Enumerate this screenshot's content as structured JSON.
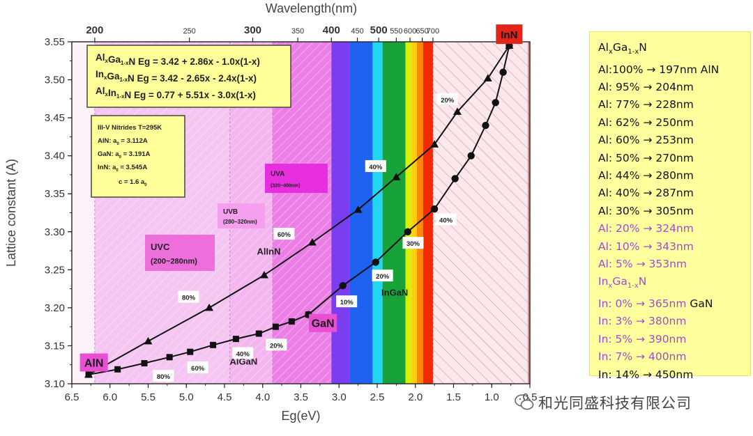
{
  "chart_data": {
    "type": "line",
    "xlabel": "Eg(eV)",
    "ylabel": "Lattice constant (A)",
    "top_axis_label": "Wavelength(nm)",
    "xlim": [
      6.5,
      0.5
    ],
    "ylim": [
      3.1,
      3.55
    ],
    "x_ticks": [
      "6.5",
      "6.0",
      "5.5",
      "5.0",
      "4.5",
      "4.0",
      "3.5",
      "3.0",
      "2.5",
      "2.0",
      "1.5",
      "1.0",
      "0.5"
    ],
    "x_tick_values": [
      6.5,
      6.0,
      5.5,
      5.0,
      4.5,
      4.0,
      3.5,
      3.0,
      2.5,
      2.0,
      1.5,
      1.0,
      0.5
    ],
    "y_ticks": [
      "3.10",
      "3.15",
      "3.20",
      "3.25",
      "3.30",
      "3.35",
      "3.40",
      "3.45",
      "3.50",
      "3.55"
    ],
    "y_tick_values": [
      3.1,
      3.15,
      3.2,
      3.25,
      3.3,
      3.35,
      3.4,
      3.45,
      3.5,
      3.55
    ],
    "top_ticks": [
      {
        "label": "200",
        "eV": 6.2,
        "bold": true
      },
      {
        "label": "250",
        "eV": 4.96,
        "bold": false
      },
      {
        "label": "300",
        "eV": 4.13,
        "bold": true
      },
      {
        "label": "350",
        "eV": 3.54,
        "bold": false
      },
      {
        "label": "400",
        "eV": 3.1,
        "bold": true
      },
      {
        "label": "450",
        "eV": 2.76,
        "bold": false
      },
      {
        "label": "500",
        "eV": 2.48,
        "bold": true
      },
      {
        "label": "550",
        "eV": 2.25,
        "bold": false
      },
      {
        "label": "600",
        "eV": 2.07,
        "bold": false
      },
      {
        "label": "650",
        "eV": 1.91,
        "bold": false
      },
      {
        "label": "700",
        "eV": 1.77,
        "bold": false
      }
    ],
    "series": [
      {
        "name": "AlGaN",
        "marker": "square",
        "x": [
          6.28,
          5.9,
          5.55,
          5.22,
          4.95,
          4.65,
          4.35,
          4.05,
          3.83,
          3.62,
          3.4
        ],
        "y": [
          3.112,
          3.119,
          3.127,
          3.135,
          3.142,
          3.151,
          3.159,
          3.166,
          3.175,
          3.182,
          3.191
        ]
      },
      {
        "name": "InGaN",
        "marker": "circle",
        "x": [
          3.4,
          2.95,
          2.52,
          2.1,
          1.75,
          1.48,
          1.27,
          1.08,
          0.95,
          0.85,
          0.77
        ],
        "y": [
          3.191,
          3.229,
          3.26,
          3.3,
          3.33,
          3.37,
          3.4,
          3.44,
          3.47,
          3.51,
          3.545
        ]
      },
      {
        "name": "AlInN",
        "marker": "triangle",
        "x": [
          6.28,
          5.5,
          4.7,
          3.98,
          3.35,
          2.75,
          2.25,
          1.75,
          1.45,
          1.05,
          0.77
        ],
        "y": [
          3.112,
          3.156,
          3.2,
          3.243,
          3.286,
          3.329,
          3.372,
          3.415,
          3.458,
          3.502,
          3.545
        ]
      }
    ],
    "regions": [
      {
        "label": "UVC",
        "sub": "(200~280nm)",
        "from": 6.2,
        "to": 4.43,
        "color": "#f4c6f1"
      },
      {
        "label": "UVB",
        "sub": "(280~320nm)",
        "from": 4.43,
        "to": 3.87,
        "color": "#f3b6ef"
      },
      {
        "label": "UVA",
        "sub": "(320~400nm)",
        "from": 3.87,
        "to": 3.1,
        "color": "#ec7fe6"
      }
    ],
    "spectrum": [
      {
        "from": 3.1,
        "to": 2.86,
        "color": "#7a3df0"
      },
      {
        "from": 2.86,
        "to": 2.56,
        "color": "#1e62ef"
      },
      {
        "from": 2.56,
        "to": 2.43,
        "color": "#22d6f2"
      },
      {
        "from": 2.43,
        "to": 2.13,
        "color": "#17a33a"
      },
      {
        "from": 2.13,
        "to": 2.05,
        "color": "#d7f007"
      },
      {
        "from": 2.05,
        "to": 1.98,
        "color": "#ffcf07"
      },
      {
        "from": 1.98,
        "to": 1.9,
        "color": "#ff8a00"
      },
      {
        "from": 1.9,
        "to": 1.77,
        "color": "#f22a00"
      }
    ],
    "equations": [
      {
        "a": "Al",
        "sub1": "x",
        "b": "Ga",
        "sub2": "1-x",
        "c": "N",
        "eq": "Eg = 3.42 + 2.86x - 1.0x(1-x)"
      },
      {
        "a": "In",
        "sub1": "x",
        "b": "Ga",
        "sub2": "1-x",
        "c": "N",
        "eq": "Eg = 3.42 -  2.65x - 2.4x(1-x)"
      },
      {
        "a": "Al",
        "sub1": "x",
        "b": "In",
        "sub2": "1-x",
        "c": "N",
        "eq": "Eg = 0.77 + 5.51x - 3.0x(1-x)"
      }
    ],
    "params": {
      "title": "III-V Nitrides T=295K",
      "aln": "AlN:  a",
      "aln_val": " = 3.112A",
      "gan": "GaN:  a",
      "gan_val": " = 3.191A",
      "inn": "InN:  a",
      "inn_val": " = 3.545A",
      "c": "c = 1.6 a"
    },
    "annotations": [
      {
        "text": "AlN",
        "x": 6.22,
        "y": 3.128,
        "kind": "pinkbox"
      },
      {
        "text": "GaN",
        "x": 3.22,
        "y": 3.18,
        "kind": "pinkbox"
      },
      {
        "text": "InN",
        "x": 0.78,
        "y": 3.56,
        "kind": "redbox"
      },
      {
        "text": "AlGaN",
        "x": 4.25,
        "y": 3.125,
        "kind": "label"
      },
      {
        "text": "AlInN",
        "x": 3.92,
        "y": 3.27,
        "kind": "label"
      },
      {
        "text": "InGaN",
        "x": 2.27,
        "y": 3.216,
        "kind": "label"
      },
      {
        "text": "80%",
        "x": 5.3,
        "y": 3.11,
        "kind": "pct"
      },
      {
        "text": "60%",
        "x": 4.85,
        "y": 3.121,
        "kind": "pct"
      },
      {
        "text": "40%",
        "x": 4.26,
        "y": 3.14,
        "kind": "pct"
      },
      {
        "text": "20%",
        "x": 3.82,
        "y": 3.151,
        "kind": "pct"
      },
      {
        "text": "80%",
        "x": 4.97,
        "y": 3.214,
        "kind": "pct"
      },
      {
        "text": "60%",
        "x": 3.72,
        "y": 3.297,
        "kind": "pct"
      },
      {
        "text": "40%",
        "x": 2.52,
        "y": 3.386,
        "kind": "pct"
      },
      {
        "text": "20%",
        "x": 1.58,
        "y": 3.474,
        "kind": "pct"
      },
      {
        "text": "10%",
        "x": 2.9,
        "y": 3.208,
        "kind": "pct"
      },
      {
        "text": "20%",
        "x": 2.43,
        "y": 3.242,
        "kind": "pct"
      },
      {
        "text": "30%",
        "x": 2.03,
        "y": 3.285,
        "kind": "pct"
      },
      {
        "text": "40%",
        "x": 1.6,
        "y": 3.316,
        "kind": "pct"
      }
    ]
  },
  "panel": {
    "algan_head": {
      "a": "Al",
      "s1": "x",
      "b": "Ga",
      "s2": "1-x",
      "c": "N"
    },
    "algan_rows": [
      {
        "text": "Al:100% → 197nm AlN",
        "color": "black"
      },
      {
        "text": "Al:  95% → 204nm",
        "color": "black"
      },
      {
        "text": "Al:  77% → 228nm",
        "color": "black"
      },
      {
        "text": "Al:  62% → 250nm",
        "color": "black"
      },
      {
        "text": "Al:  60% → 253nm",
        "color": "black"
      },
      {
        "text": "Al:  50% → 270nm",
        "color": "black"
      },
      {
        "text": "Al:  44% → 280nm",
        "color": "black"
      },
      {
        "text": "Al:  40% → 287nm",
        "color": "black"
      },
      {
        "text": "Al:  30% → 305nm",
        "color": "black"
      },
      {
        "text": "Al:  20% → 324nm",
        "color": "purple"
      },
      {
        "text": "Al:  10% → 343nm",
        "color": "purple"
      },
      {
        "text": "Al:    5% → 353nm",
        "color": "purple"
      }
    ],
    "ingan_head": {
      "a": "In",
      "s1": "x",
      "b": "Ga",
      "s2": "1-x",
      "c": "N"
    },
    "ingan_rows": [
      {
        "text": "In:   0% → 365nm",
        "extra": "  GaN",
        "color": "purple"
      },
      {
        "text": "In:   3% → 380nm",
        "color": "purple"
      },
      {
        "text": "In:   5% → 390nm",
        "color": "purple"
      },
      {
        "text": "In:   7% → 400nm",
        "color": "purple"
      },
      {
        "text": "In:  14% → 450nm",
        "color": "black"
      }
    ]
  },
  "watermark": {
    "text": "和光同盛科技有限公司"
  }
}
